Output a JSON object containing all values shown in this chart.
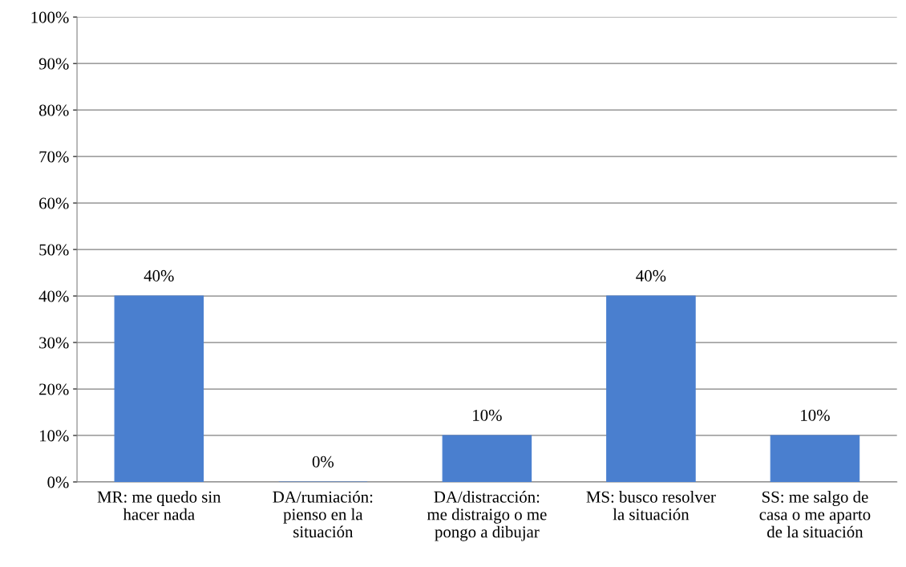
{
  "chart_data": {
    "type": "bar",
    "categories": [
      "MR: me quedo sin\nhacer nada",
      "DA/rumiación:\npienso en la\nsituación",
      "DA/distracción:\nme distraigo o me\npongo a dibujar",
      "MS: busco resolver\nla situación",
      "SS: me salgo de\ncasa o me aparto\nde la situación"
    ],
    "values": [
      40,
      0,
      10,
      40,
      10
    ],
    "value_labels": [
      "40%",
      "0%",
      "10%",
      "40%",
      "10%"
    ],
    "color": "#4a7fcf",
    "ylim": [
      0,
      100
    ],
    "yticks": [
      {
        "value": 0,
        "label": "0%"
      },
      {
        "value": 10,
        "label": "10%"
      },
      {
        "value": 20,
        "label": "20%"
      },
      {
        "value": 30,
        "label": "30%"
      },
      {
        "value": 40,
        "label": "40%"
      },
      {
        "value": 50,
        "label": "50%"
      },
      {
        "value": 60,
        "label": "60%"
      },
      {
        "value": 70,
        "label": "70%"
      },
      {
        "value": 80,
        "label": "80%"
      },
      {
        "value": 90,
        "label": "90%"
      },
      {
        "value": 100,
        "label": "100%"
      }
    ],
    "grid": "y"
  }
}
